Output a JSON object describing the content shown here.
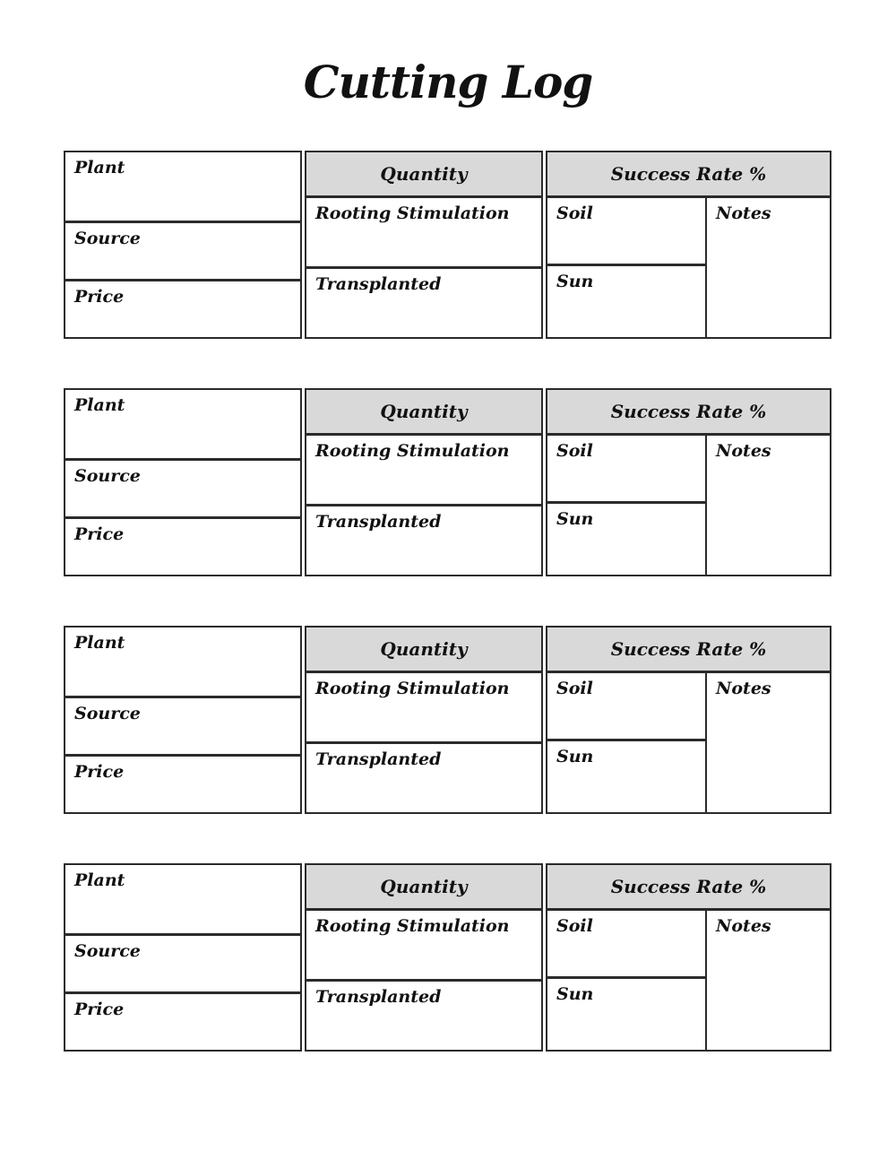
{
  "page": {
    "title": "Cutting Log"
  },
  "block_labels": {
    "plant": "Plant",
    "source": "Source",
    "price": "Price",
    "quantity": "Quantity",
    "rooting": "Rooting Stimulation",
    "transplanted": "Transplanted",
    "success_rate": "Success Rate %",
    "soil": "Soil",
    "sun": "Sun",
    "notes": "Notes"
  },
  "blocks": [
    {
      "index": 1
    },
    {
      "index": 2
    },
    {
      "index": 3
    },
    {
      "index": 4
    }
  ],
  "colors": {
    "border": "#2b2b2b",
    "header_bg": "#d9d9d9",
    "text": "#111111",
    "page_bg": "#ffffff"
  }
}
